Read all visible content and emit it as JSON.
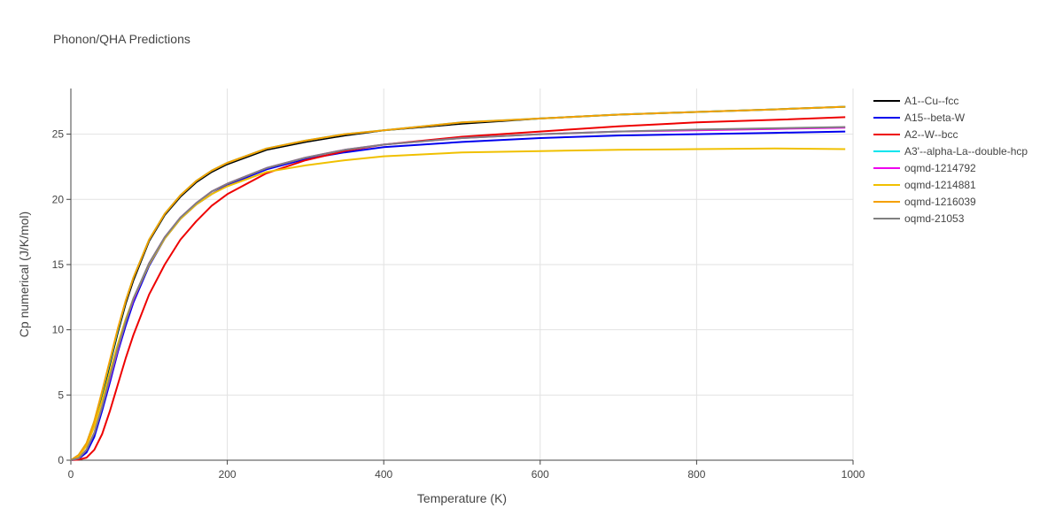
{
  "chart_data": {
    "type": "line",
    "title": "Phonon/QHA Predictions",
    "xlabel": "Temperature (K)",
    "ylabel": "Cp numerical (J/K/mol)",
    "xlim": [
      0,
      1000
    ],
    "ylim": [
      0,
      28.5
    ],
    "xticks": [
      0,
      200,
      400,
      600,
      800,
      1000
    ],
    "yticks": [
      0,
      5,
      10,
      15,
      20,
      25
    ],
    "grid": true,
    "legend_position": "right",
    "series": [
      {
        "name": "A1--Cu--fcc",
        "color": "#000000",
        "x": [
          0,
          10,
          20,
          30,
          40,
          50,
          60,
          70,
          80,
          100,
          120,
          140,
          160,
          180,
          200,
          250,
          300,
          350,
          400,
          500,
          600,
          700,
          800,
          900,
          990
        ],
        "y": [
          0,
          0.3,
          1.2,
          2.8,
          5.0,
          7.4,
          9.8,
          12.0,
          13.8,
          16.8,
          18.8,
          20.2,
          21.3,
          22.1,
          22.7,
          23.8,
          24.4,
          24.9,
          25.3,
          25.8,
          26.2,
          26.5,
          26.7,
          26.9,
          27.1
        ]
      },
      {
        "name": "A15--beta-W",
        "color": "#0000ee",
        "x": [
          0,
          10,
          20,
          30,
          40,
          50,
          60,
          70,
          80,
          100,
          120,
          140,
          160,
          180,
          200,
          250,
          300,
          350,
          400,
          500,
          600,
          700,
          800,
          900,
          990
        ],
        "y": [
          0,
          0.1,
          0.6,
          1.8,
          3.8,
          6.0,
          8.3,
          10.3,
          12.1,
          14.9,
          17.0,
          18.5,
          19.6,
          20.4,
          21.1,
          22.3,
          23.1,
          23.6,
          24.0,
          24.4,
          24.7,
          24.9,
          25.0,
          25.1,
          25.2
        ]
      },
      {
        "name": "A2--W--bcc",
        "color": "#ee0000",
        "x": [
          0,
          10,
          20,
          30,
          40,
          50,
          60,
          70,
          80,
          100,
          120,
          140,
          160,
          180,
          200,
          250,
          300,
          350,
          400,
          500,
          600,
          700,
          800,
          900,
          990
        ],
        "y": [
          0,
          0.05,
          0.2,
          0.8,
          2.0,
          3.8,
          5.8,
          7.8,
          9.6,
          12.7,
          15.0,
          16.9,
          18.3,
          19.5,
          20.4,
          22.0,
          23.0,
          23.7,
          24.2,
          24.8,
          25.2,
          25.6,
          25.9,
          26.1,
          26.3
        ]
      },
      {
        "name": "A3'--alpha-La--double-hcp",
        "color": "#00e5ee",
        "x": [
          0,
          10,
          20,
          30,
          40,
          50,
          60,
          70,
          80,
          100,
          120,
          140,
          160,
          180,
          200,
          250,
          300,
          350,
          400,
          500,
          600,
          700,
          800,
          900,
          990
        ],
        "y": [
          0,
          0.4,
          1.3,
          3.0,
          5.2,
          7.6,
          10.0,
          12.2,
          14.0,
          16.9,
          18.9,
          20.3,
          21.4,
          22.2,
          22.8,
          23.9,
          24.5,
          25.0,
          25.3,
          25.9,
          26.2,
          26.5,
          26.7,
          26.9,
          27.1
        ]
      },
      {
        "name": "oqmd-1214792",
        "color": "#ee00ee",
        "x": [
          0,
          10,
          20,
          30,
          40,
          50,
          60,
          70,
          80,
          100,
          120,
          140,
          160,
          180,
          200,
          250,
          300,
          350,
          400,
          500,
          600,
          700,
          800,
          900,
          990
        ],
        "y": [
          0,
          0.15,
          0.8,
          2.1,
          4.1,
          6.3,
          8.5,
          10.6,
          12.3,
          15.1,
          17.1,
          18.6,
          19.7,
          20.6,
          21.2,
          22.4,
          23.2,
          23.8,
          24.2,
          24.7,
          25.0,
          25.2,
          25.3,
          25.4,
          25.5
        ]
      },
      {
        "name": "oqmd-1214881",
        "color": "#f0c000",
        "x": [
          0,
          10,
          20,
          30,
          40,
          50,
          60,
          70,
          80,
          100,
          120,
          140,
          160,
          180,
          200,
          250,
          300,
          350,
          400,
          500,
          600,
          700,
          800,
          900,
          990
        ],
        "y": [
          0,
          0.3,
          1.1,
          2.6,
          4.6,
          6.8,
          8.9,
          10.8,
          12.4,
          15.0,
          17.0,
          18.5,
          19.6,
          20.4,
          21.0,
          22.1,
          22.6,
          23.0,
          23.3,
          23.6,
          23.7,
          23.8,
          23.85,
          23.9,
          23.85
        ]
      },
      {
        "name": "oqmd-1216039",
        "color": "#f5a000",
        "x": [
          0,
          10,
          20,
          30,
          40,
          50,
          60,
          70,
          80,
          100,
          120,
          140,
          160,
          180,
          200,
          250,
          300,
          350,
          400,
          500,
          600,
          700,
          800,
          900,
          990
        ],
        "y": [
          0,
          0.4,
          1.3,
          3.0,
          5.3,
          7.7,
          10.1,
          12.2,
          14.0,
          16.9,
          18.9,
          20.3,
          21.4,
          22.2,
          22.8,
          23.9,
          24.5,
          25.0,
          25.3,
          25.9,
          26.2,
          26.5,
          26.7,
          26.9,
          27.1
        ]
      },
      {
        "name": "oqmd-21053",
        "color": "#808080",
        "x": [
          0,
          10,
          20,
          30,
          40,
          50,
          60,
          70,
          80,
          100,
          120,
          140,
          160,
          180,
          200,
          250,
          300,
          350,
          400,
          500,
          600,
          700,
          800,
          900,
          990
        ],
        "y": [
          0,
          0.15,
          0.8,
          2.1,
          4.1,
          6.4,
          8.6,
          10.6,
          12.4,
          15.1,
          17.1,
          18.6,
          19.7,
          20.6,
          21.2,
          22.4,
          23.2,
          23.8,
          24.2,
          24.7,
          25.0,
          25.2,
          25.35,
          25.45,
          25.55
        ]
      }
    ]
  }
}
